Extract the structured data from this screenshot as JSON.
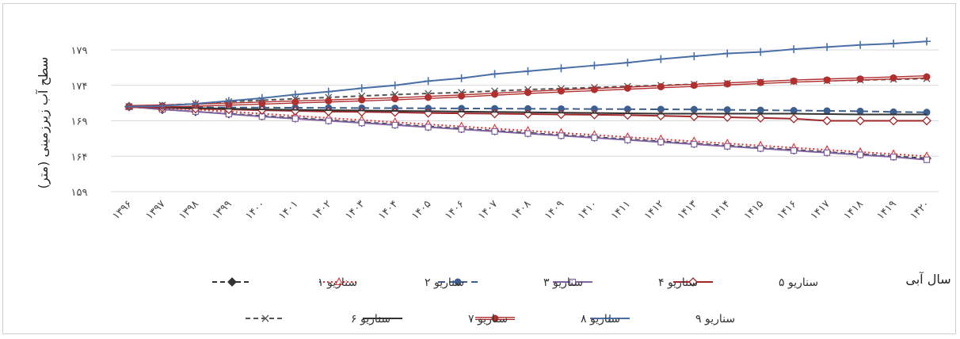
{
  "chart_data": {
    "type": "line",
    "title": "",
    "ylabel": "سطح آب زیرزمینی (متر)",
    "xlabel": "سال آبی",
    "ylim": [
      159,
      179
    ],
    "yticks": [
      159,
      164,
      169,
      174,
      179
    ],
    "ytick_labels": [
      "۱۵۹",
      "۱۶۴",
      "۱۶۹",
      "۱۷۴",
      "۱۷۹"
    ],
    "categories": [
      "۱۳۹۶",
      "۱۳۹۷",
      "۱۳۹۸",
      "۱۳۹۹",
      "۱۴۰۰",
      "۱۴۰۱",
      "۱۴۰۲",
      "۱۴۰۳",
      "۱۴۰۴",
      "۱۴۰۵",
      "۱۴۰۶",
      "۱۴۰۷",
      "۱۴۰۸",
      "۱۴۰۹",
      "۱۴۱۰",
      "۱۴۱۱",
      "۱۴۱۲",
      "۱۴۱۳",
      "۱۴۱۴",
      "۱۴۱۵",
      "۱۴۱۶",
      "۱۴۱۷",
      "۱۴۱۸",
      "۱۴۱۹",
      "۱۴۲۰"
    ],
    "grid": true,
    "legend_position": "bottom",
    "series": [
      {
        "name": "سناریو ۱",
        "color": "#333333",
        "dash": "6,4",
        "marker": "diamond-filled",
        "values": [
          171.0,
          170.6,
          170.3,
          170.0,
          169.7,
          169.4,
          169.1,
          168.8,
          168.5,
          168.2,
          167.9,
          167.6,
          167.3,
          167.0,
          166.7,
          166.4,
          166.1,
          165.8,
          165.5,
          165.2,
          164.9,
          164.6,
          164.3,
          164.0,
          163.7
        ]
      },
      {
        "name": "سناریو ۲",
        "color": "#e03030",
        "dash": "2,3",
        "marker": "triangle-open",
        "values": [
          171.0,
          170.8,
          170.6,
          170.3,
          170.0,
          169.7,
          169.4,
          169.1,
          168.8,
          168.5,
          168.2,
          167.9,
          167.6,
          167.3,
          167.0,
          166.7,
          166.4,
          166.1,
          165.8,
          165.5,
          165.2,
          164.9,
          164.6,
          164.3,
          164.0
        ]
      },
      {
        "name": "سناریو ۳",
        "color": "#3d5f8f",
        "dash": "9,5",
        "marker": "circle-filled",
        "values": [
          171.0,
          170.95,
          170.9,
          170.88,
          170.86,
          170.84,
          170.82,
          170.8,
          170.78,
          170.76,
          170.74,
          170.72,
          170.7,
          170.68,
          170.66,
          170.64,
          170.62,
          170.6,
          170.55,
          170.5,
          170.45,
          170.4,
          170.35,
          170.25,
          170.2
        ]
      },
      {
        "name": "سناریو ۴",
        "color": "#8064a2",
        "dash": "",
        "marker": "square-open",
        "values": [
          171.0,
          170.6,
          170.3,
          169.95,
          169.6,
          169.3,
          169.0,
          168.7,
          168.4,
          168.1,
          167.8,
          167.5,
          167.2,
          166.9,
          166.6,
          166.3,
          166.0,
          165.7,
          165.4,
          165.1,
          164.8,
          164.5,
          164.2,
          163.9,
          163.5
        ]
      },
      {
        "name": "سناریو ۵",
        "color": "#a0282a",
        "dash": "",
        "marker": "diamond-open",
        "values": [
          171.0,
          170.85,
          170.7,
          170.6,
          170.5,
          170.4,
          170.3,
          170.25,
          170.2,
          170.1,
          170.05,
          170.0,
          169.95,
          169.9,
          169.85,
          169.8,
          169.7,
          169.6,
          169.5,
          169.4,
          169.3,
          169.0,
          169.0,
          169.0,
          169.0
        ]
      },
      {
        "name": "سناریو ۶",
        "color": "#555555",
        "dash": "6,4",
        "marker": "x",
        "values": [
          171.0,
          171.2,
          171.4,
          171.7,
          171.9,
          172.1,
          172.3,
          172.5,
          172.7,
          172.85,
          173.0,
          173.2,
          173.4,
          173.55,
          173.7,
          173.85,
          174.0,
          174.15,
          174.3,
          174.45,
          174.55,
          174.65,
          174.75,
          174.85,
          174.95
        ]
      },
      {
        "name": "سناریو ۷",
        "color": "#333333",
        "dash": "",
        "marker": "none",
        "values": [
          171.0,
          170.9,
          170.8,
          170.7,
          170.6,
          170.55,
          170.5,
          170.45,
          170.4,
          170.35,
          170.3,
          170.25,
          170.2,
          170.15,
          170.1,
          170.05,
          170.0,
          170.0,
          170.0,
          170.0,
          170.0,
          169.95,
          169.9,
          169.9,
          169.9
        ]
      },
      {
        "name": "سناریو ۸",
        "color": "#b03030",
        "dash": "",
        "marker": "circle-filled",
        "double": true,
        "values": [
          171.0,
          171.1,
          171.2,
          171.35,
          171.5,
          171.65,
          171.8,
          171.95,
          172.1,
          172.3,
          172.5,
          172.75,
          173.0,
          173.2,
          173.4,
          173.6,
          173.8,
          174.0,
          174.2,
          174.4,
          174.6,
          174.75,
          174.9,
          175.05,
          175.2
        ]
      },
      {
        "name": "سناریو ۹",
        "color": "#4a6fa5",
        "dash": "",
        "marker": "plus",
        "values": [
          171.0,
          171.1,
          171.4,
          171.8,
          172.2,
          172.7,
          173.1,
          173.6,
          174.0,
          174.6,
          175.0,
          175.6,
          176.0,
          176.4,
          176.8,
          177.2,
          177.7,
          178.1,
          178.5,
          178.7,
          179.1,
          179.4,
          179.7,
          179.9,
          180.2
        ]
      }
    ]
  }
}
